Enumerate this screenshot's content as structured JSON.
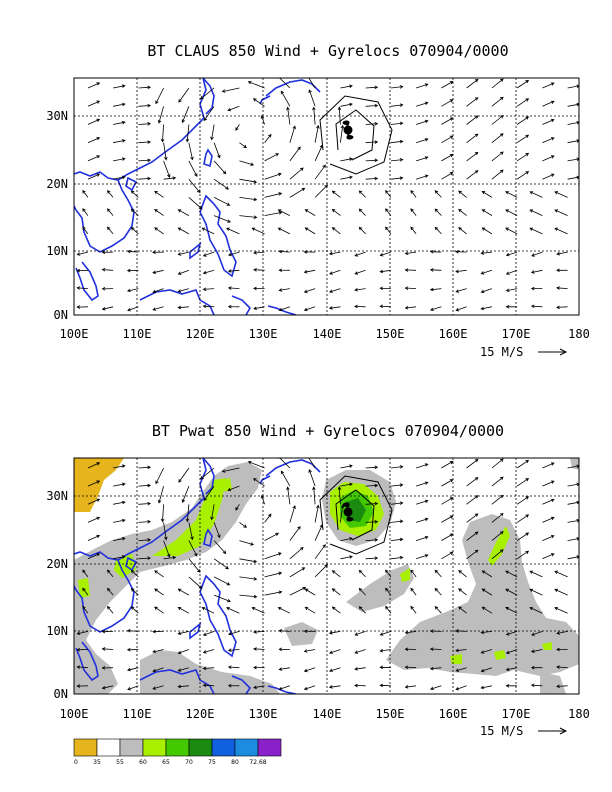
{
  "colors": {
    "coast": "#2030dd",
    "grid": "#000000",
    "shade_55_60": "#bdbdbd",
    "shade_60_65": "#a8f000",
    "shade_65_70": "#44c800",
    "shade_70_75": "#1a8a10",
    "shade_0_35": "#e6b41c"
  },
  "chart_data": [
    {
      "type": "vector_map",
      "title": "BT CLAUS 850 Wind + Gyrelocs 070904/0000",
      "xlim": [
        100,
        180
      ],
      "ylim": [
        0,
        35
      ],
      "x_ticks": [
        "100E",
        "110E",
        "120E",
        "130E",
        "140E",
        "150E",
        "160E",
        "170E",
        "180"
      ],
      "y_ticks": [
        "0N",
        "10N",
        "20N",
        "30N"
      ],
      "vector_reference": "15 M/S",
      "gyre_center": [
        143.5,
        27.5
      ],
      "grid": true
    },
    {
      "type": "vector_map_filled",
      "title": "BT Pwat 850 Wind + Gyrelocs 070904/0000",
      "xlim": [
        100,
        180
      ],
      "ylim": [
        0,
        35
      ],
      "x_ticks": [
        "100E",
        "110E",
        "120E",
        "130E",
        "140E",
        "150E",
        "160E",
        "170E",
        "180"
      ],
      "y_ticks": [
        "0N",
        "10N",
        "20N",
        "30N"
      ],
      "vector_reference": "15 M/S",
      "gyre_center": [
        143.5,
        27.5
      ],
      "grid": true,
      "colorbar": {
        "boundaries": [
          "0",
          "35",
          "55",
          "60",
          "65",
          "70",
          "75",
          "80",
          "72.68"
        ],
        "colors": [
          "#e6b41c",
          "#ffffff",
          "#bdbdbd",
          "#a8f000",
          "#44c800",
          "#1a8a10",
          "#1060e0",
          "#1c8ce0",
          "#8a20c8"
        ]
      }
    }
  ]
}
